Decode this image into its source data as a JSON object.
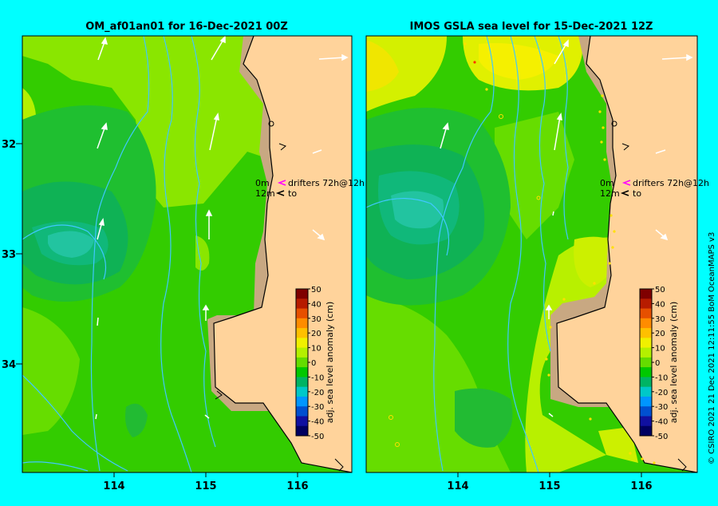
{
  "panels": [
    {
      "title": "OM_af01an01 for 16-Dec-2021 00Z",
      "legend": {
        "line1_depth": "0m",
        "line1_text": "drifters 72h@12h",
        "line2_depth": "12m",
        "line2_text": "to"
      }
    },
    {
      "title": "IMOS GSLA sea level  for 15-Dec-2021 12Z",
      "legend": {
        "line1_depth": "0m",
        "line1_text": "drifters 72h@12h",
        "line2_depth": "12m",
        "line2_text": "to"
      }
    }
  ],
  "lat_ticks": [
    "32",
    "33",
    "34"
  ],
  "lon_ticks": [
    "114",
    "115",
    "116"
  ],
  "colorbar": {
    "label": "adj. sea level anomaly (cm)",
    "ticks": [
      "50",
      "40",
      "30",
      "20",
      "10",
      "0",
      "-10",
      "-20",
      "-30",
      "-40",
      "-50"
    ],
    "colors": [
      "#7f0000",
      "#b71c00",
      "#e65000",
      "#ff8c00",
      "#ffc000",
      "#f0f000",
      "#b4f000",
      "#64dc00",
      "#00c800",
      "#00b464",
      "#00c8c8",
      "#0096ff",
      "#0050d0",
      "#1010a0",
      "#000060"
    ]
  },
  "credit": "© CSIRO 2021   21 Dec 2021 12:11:55 BoM OceanMAPS v3",
  "colors": {
    "background": "#00ffff",
    "land": "#ffd39b",
    "shelf": "#c8a882",
    "ocean_base": "#33cc00",
    "contour": "#40c8ff"
  }
}
